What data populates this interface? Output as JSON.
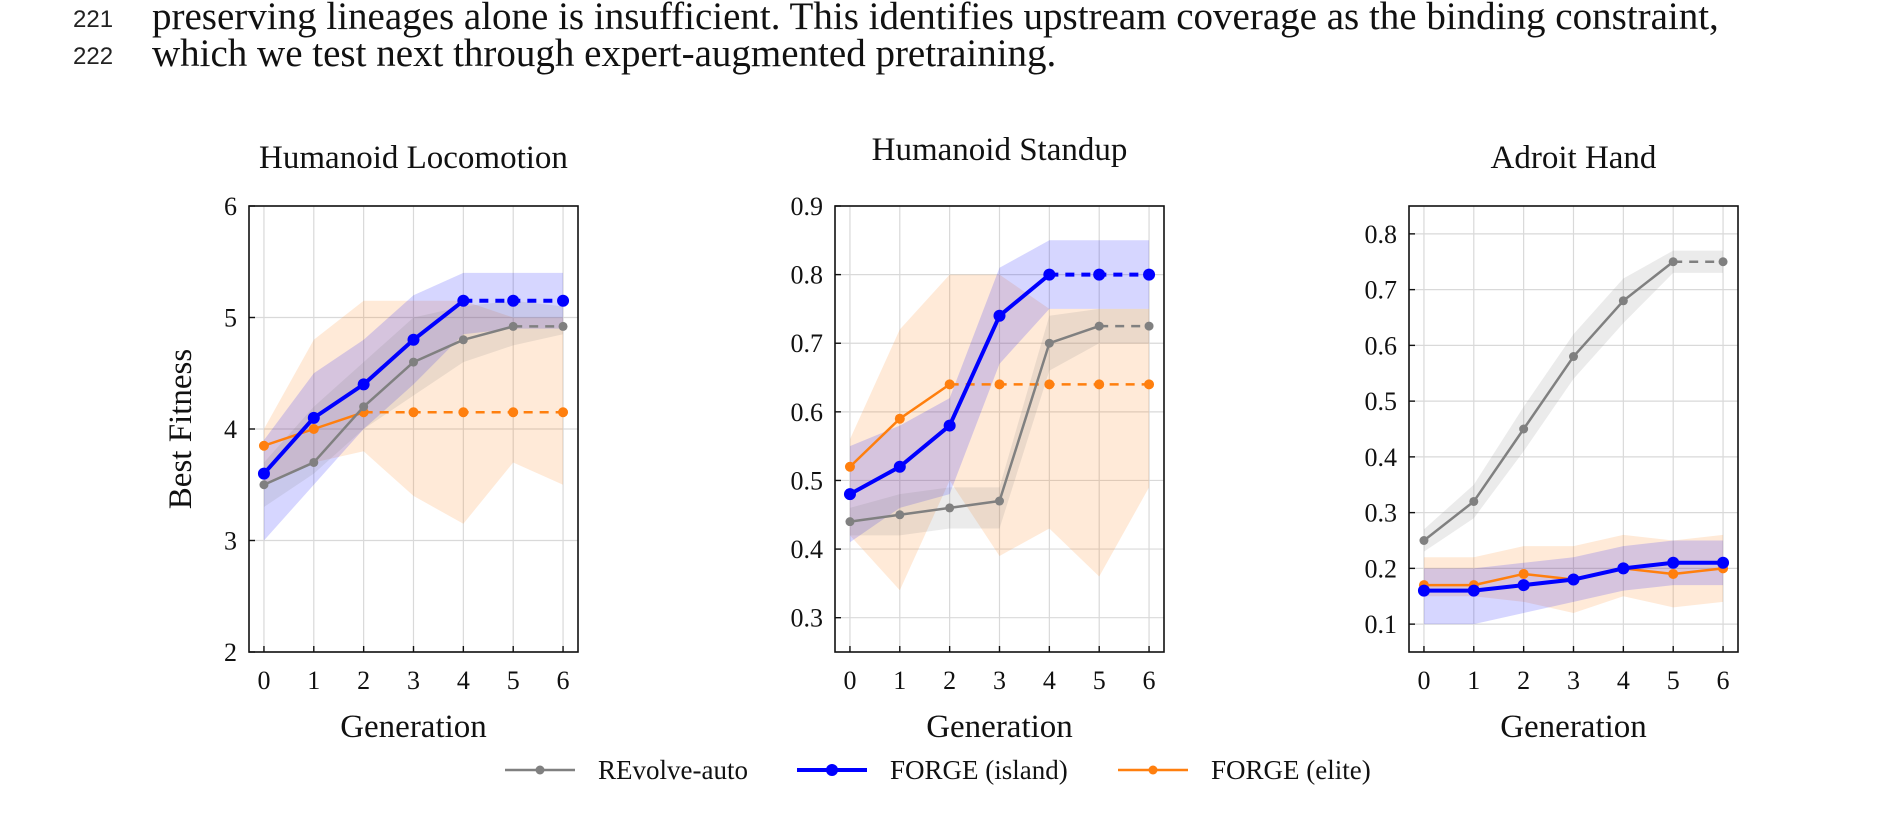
{
  "paper_text": {
    "lines": [
      {
        "number": "221",
        "text": "preserving lineages alone is insufficient. This identifies upstream coverage as the binding constraint,"
      },
      {
        "number": "222",
        "text": "which we test next through expert-augmented pretraining."
      }
    ]
  },
  "chart_data": [
    {
      "type": "line",
      "title": "Humanoid Locomotion",
      "xlabel": "Generation",
      "ylabel": "Best Fitness",
      "x": [
        0,
        1,
        2,
        3,
        4,
        5,
        6
      ],
      "xlim": [
        -0.3,
        6.3
      ],
      "ylim": [
        2,
        6
      ],
      "yticks": [
        2,
        3,
        4,
        5,
        6
      ],
      "grid": true,
      "series": [
        {
          "name": "REvolve-auto",
          "color": "#808080",
          "values": [
            3.5,
            3.7,
            4.2,
            4.6,
            4.8,
            4.92,
            4.92
          ],
          "upper": [
            3.7,
            4.2,
            4.6,
            5.0,
            5.1,
            5.15,
            5.1
          ],
          "lower": [
            3.3,
            3.6,
            4.0,
            4.3,
            4.6,
            4.75,
            4.85
          ],
          "solid_until": 5
        },
        {
          "name": "FORGE (island)",
          "color": "#0000ff",
          "values": [
            3.6,
            4.1,
            4.4,
            4.8,
            5.15,
            5.15,
            5.15
          ],
          "upper": [
            3.9,
            4.5,
            4.8,
            5.2,
            5.4,
            5.4,
            5.4
          ],
          "lower": [
            3.0,
            3.5,
            4.0,
            4.4,
            4.85,
            4.9,
            4.9
          ],
          "solid_until": 4
        },
        {
          "name": "FORGE (elite)",
          "color": "#ff7f0e",
          "values": [
            3.85,
            4.0,
            4.15,
            4.15,
            4.15,
            4.15,
            4.15
          ],
          "upper": [
            4.0,
            4.8,
            5.15,
            5.15,
            5.15,
            5.0,
            5.0
          ],
          "lower": [
            3.5,
            3.7,
            3.8,
            3.4,
            3.15,
            3.7,
            3.5
          ],
          "solid_until": 2
        }
      ]
    },
    {
      "type": "line",
      "title": "Humanoid Standup",
      "xlabel": "Generation",
      "ylabel": "",
      "x": [
        0,
        1,
        2,
        3,
        4,
        5,
        6
      ],
      "xlim": [
        -0.3,
        6.3
      ],
      "ylim": [
        0.25,
        0.9
      ],
      "yticks": [
        0.3,
        0.4,
        0.5,
        0.6,
        0.7,
        0.8,
        0.9
      ],
      "grid": true,
      "series": [
        {
          "name": "REvolve-auto",
          "color": "#808080",
          "values": [
            0.44,
            0.45,
            0.46,
            0.47,
            0.7,
            0.725,
            0.725
          ],
          "upper": [
            0.46,
            0.48,
            0.49,
            0.49,
            0.74,
            0.75,
            0.75
          ],
          "lower": [
            0.42,
            0.42,
            0.43,
            0.43,
            0.66,
            0.7,
            0.7
          ],
          "solid_until": 5
        },
        {
          "name": "FORGE (island)",
          "color": "#0000ff",
          "values": [
            0.48,
            0.52,
            0.58,
            0.74,
            0.8,
            0.8,
            0.8
          ],
          "upper": [
            0.55,
            0.58,
            0.62,
            0.81,
            0.85,
            0.85,
            0.85
          ],
          "lower": [
            0.41,
            0.46,
            0.48,
            0.67,
            0.75,
            0.75,
            0.75
          ],
          "solid_until": 4
        },
        {
          "name": "FORGE (elite)",
          "color": "#ff7f0e",
          "values": [
            0.52,
            0.59,
            0.64,
            0.64,
            0.64,
            0.64,
            0.64
          ],
          "upper": [
            0.56,
            0.72,
            0.8,
            0.8,
            0.75,
            0.75,
            0.75
          ],
          "lower": [
            0.42,
            0.34,
            0.5,
            0.39,
            0.43,
            0.36,
            0.49
          ],
          "solid_until": 2
        }
      ]
    },
    {
      "type": "line",
      "title": "Adroit Hand",
      "xlabel": "Generation",
      "ylabel": "",
      "x": [
        0,
        1,
        2,
        3,
        4,
        5,
        6
      ],
      "xlim": [
        -0.3,
        6.3
      ],
      "ylim": [
        0.05,
        0.85
      ],
      "yticks": [
        0.1,
        0.2,
        0.3,
        0.4,
        0.5,
        0.6,
        0.7,
        0.8
      ],
      "grid": true,
      "series": [
        {
          "name": "REvolve-auto",
          "color": "#808080",
          "values": [
            0.25,
            0.32,
            0.45,
            0.58,
            0.68,
            0.75,
            0.75
          ],
          "upper": [
            0.27,
            0.35,
            0.49,
            0.62,
            0.72,
            0.77,
            0.77
          ],
          "lower": [
            0.23,
            0.29,
            0.41,
            0.54,
            0.64,
            0.73,
            0.73
          ],
          "solid_until": 5
        },
        {
          "name": "FORGE (island)",
          "color": "#0000ff",
          "values": [
            0.16,
            0.16,
            0.17,
            0.18,
            0.2,
            0.21,
            0.21
          ],
          "upper": [
            0.2,
            0.2,
            0.21,
            0.22,
            0.24,
            0.25,
            0.25
          ],
          "lower": [
            0.1,
            0.1,
            0.12,
            0.14,
            0.16,
            0.17,
            0.17
          ],
          "solid_until": 6
        },
        {
          "name": "FORGE (elite)",
          "color": "#ff7f0e",
          "values": [
            0.17,
            0.17,
            0.19,
            0.18,
            0.2,
            0.19,
            0.2
          ],
          "upper": [
            0.22,
            0.22,
            0.24,
            0.24,
            0.26,
            0.25,
            0.26
          ],
          "lower": [
            0.15,
            0.15,
            0.14,
            0.12,
            0.15,
            0.13,
            0.14
          ],
          "solid_until": 6
        }
      ]
    }
  ],
  "legend": {
    "placement": "bottom-center",
    "entries": [
      {
        "label": "REvolve-auto",
        "color": "#808080"
      },
      {
        "label": "FORGE (island)",
        "color": "#0000ff"
      },
      {
        "label": "FORGE (elite)",
        "color": "#ff7f0e"
      }
    ]
  }
}
